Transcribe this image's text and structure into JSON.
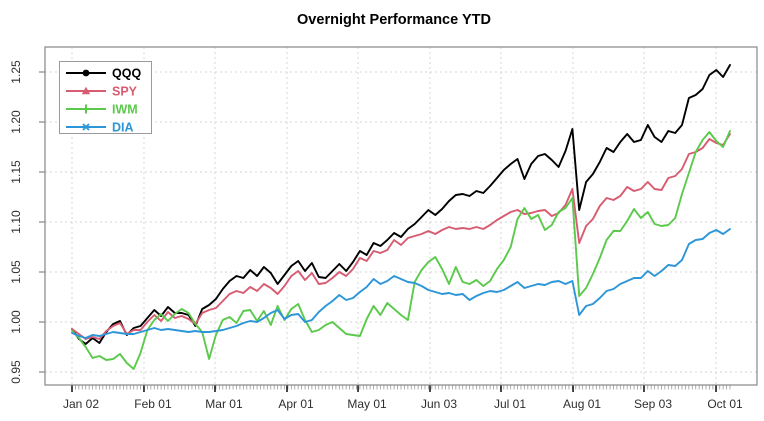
{
  "chart_data": {
    "type": "line",
    "title": "Overnight Performance YTD",
    "xlabel": "",
    "ylabel": "",
    "grid": true,
    "legend_position": "top-left",
    "x_tick_labels": [
      "Jan 02",
      "Feb 01",
      "Mar 01",
      "Apr 01",
      "May 01",
      "Jun 03",
      "Jul 01",
      "Aug 01",
      "Sep 03",
      "Oct 01"
    ],
    "x_tick_positions": [
      0,
      10.5,
      20.86,
      31.37,
      41.73,
      52.23,
      62.59,
      73.1,
      83.45,
      93.96
    ],
    "x_index_max": 96,
    "minor_tick_step": 0.5,
    "y_tick_labels": [
      "0.95",
      "1.00",
      "1.05",
      "1.10",
      "1.15",
      "1.20",
      "1.25"
    ],
    "y_tick_values": [
      0.95,
      1.0,
      1.05,
      1.1,
      1.15,
      1.2,
      1.25
    ],
    "y_domain": [
      0.937,
      1.275
    ],
    "colors": {
      "axis": "#878787",
      "grid": "#d6d6d6",
      "minor_tick": "#9a9a9a",
      "major_tick": "#1a1a1a",
      "label": "#2e2e2e",
      "legend_border": "#9a9a9a"
    },
    "series": [
      {
        "name": "QQQ",
        "color": "#000000",
        "marker": "circle",
        "values": [
          0.993,
          0.983,
          0.978,
          0.984,
          0.979,
          0.99,
          0.998,
          1.001,
          0.987,
          0.994,
          0.996,
          1.004,
          1.012,
          1.006,
          1.015,
          1.009,
          1.009,
          1.007,
          0.996,
          1.013,
          1.017,
          1.023,
          1.033,
          1.041,
          1.046,
          1.044,
          1.052,
          1.046,
          1.055,
          1.049,
          1.038,
          1.047,
          1.056,
          1.061,
          1.051,
          1.059,
          1.045,
          1.044,
          1.051,
          1.058,
          1.051,
          1.06,
          1.071,
          1.067,
          1.079,
          1.076,
          1.082,
          1.089,
          1.085,
          1.093,
          1.098,
          1.105,
          1.112,
          1.107,
          1.113,
          1.121,
          1.127,
          1.128,
          1.126,
          1.131,
          1.129,
          1.136,
          1.144,
          1.152,
          1.158,
          1.163,
          1.143,
          1.158,
          1.166,
          1.168,
          1.162,
          1.155,
          1.171,
          1.193,
          1.112,
          1.14,
          1.148,
          1.16,
          1.174,
          1.17,
          1.18,
          1.188,
          1.18,
          1.182,
          1.197,
          1.185,
          1.18,
          1.191,
          1.189,
          1.197,
          1.224,
          1.227,
          1.233,
          1.247,
          1.252,
          1.245,
          1.257
        ]
      },
      {
        "name": "SPY",
        "color": "#d85c71",
        "marker": "triangle",
        "values": [
          0.993,
          0.988,
          0.983,
          0.985,
          0.983,
          0.991,
          0.996,
          0.999,
          0.988,
          0.992,
          0.992,
          1.0,
          1.007,
          1.001,
          1.01,
          1.004,
          1.006,
          1.003,
          0.998,
          1.009,
          1.012,
          1.014,
          1.021,
          1.028,
          1.031,
          1.029,
          1.035,
          1.031,
          1.038,
          1.034,
          1.028,
          1.036,
          1.046,
          1.051,
          1.042,
          1.049,
          1.038,
          1.039,
          1.044,
          1.05,
          1.046,
          1.053,
          1.064,
          1.061,
          1.071,
          1.069,
          1.072,
          1.082,
          1.077,
          1.084,
          1.086,
          1.088,
          1.091,
          1.088,
          1.092,
          1.095,
          1.093,
          1.094,
          1.093,
          1.095,
          1.093,
          1.097,
          1.102,
          1.106,
          1.11,
          1.112,
          1.108,
          1.109,
          1.111,
          1.112,
          1.106,
          1.109,
          1.117,
          1.133,
          1.079,
          1.096,
          1.103,
          1.116,
          1.124,
          1.122,
          1.126,
          1.135,
          1.131,
          1.133,
          1.14,
          1.133,
          1.132,
          1.144,
          1.146,
          1.153,
          1.168,
          1.17,
          1.174,
          1.183,
          1.179,
          1.177,
          1.188
        ]
      },
      {
        "name": "IWM",
        "color": "#5bc94b",
        "marker": "plus",
        "values": [
          0.991,
          0.984,
          0.975,
          0.964,
          0.966,
          0.962,
          0.963,
          0.968,
          0.959,
          0.953,
          0.969,
          0.992,
          1.002,
          1.008,
          1.001,
          1.008,
          1.013,
          1.009,
          0.998,
          0.99,
          0.963,
          0.987,
          1.002,
          1.005,
          0.999,
          1.011,
          1.012,
          1.001,
          1.011,
          0.997,
          1.016,
          1.002,
          1.013,
          1.018,
          1.002,
          0.99,
          0.992,
          0.997,
          1.0,
          0.994,
          0.988,
          0.987,
          0.986,
          1.003,
          1.016,
          1.007,
          1.019,
          1.013,
          1.007,
          1.002,
          1.04,
          1.052,
          1.06,
          1.065,
          1.053,
          1.038,
          1.055,
          1.04,
          1.038,
          1.042,
          1.036,
          1.041,
          1.053,
          1.062,
          1.075,
          1.103,
          1.114,
          1.103,
          1.107,
          1.092,
          1.097,
          1.11,
          1.114,
          1.124,
          1.026,
          1.034,
          1.048,
          1.064,
          1.082,
          1.091,
          1.091,
          1.101,
          1.113,
          1.104,
          1.11,
          1.098,
          1.096,
          1.097,
          1.104,
          1.128,
          1.149,
          1.17,
          1.182,
          1.19,
          1.181,
          1.175,
          1.191
        ]
      },
      {
        "name": "DIA",
        "color": "#2d96d8",
        "marker": "asterisk",
        "values": [
          0.989,
          0.986,
          0.984,
          0.987,
          0.986,
          0.988,
          0.99,
          0.989,
          0.988,
          0.988,
          0.99,
          0.992,
          0.994,
          0.992,
          0.993,
          0.992,
          0.991,
          0.99,
          0.991,
          0.99,
          0.99,
          0.991,
          0.992,
          0.994,
          0.996,
          0.999,
          1.001,
          1.0,
          1.004,
          1.009,
          1.012,
          1.003,
          1.007,
          1.008,
          1.0,
          1.002,
          1.01,
          1.016,
          1.021,
          1.027,
          1.022,
          1.024,
          1.03,
          1.035,
          1.043,
          1.038,
          1.041,
          1.046,
          1.043,
          1.04,
          1.039,
          1.036,
          1.032,
          1.03,
          1.028,
          1.029,
          1.027,
          1.028,
          1.022,
          1.026,
          1.029,
          1.031,
          1.03,
          1.032,
          1.036,
          1.04,
          1.034,
          1.036,
          1.038,
          1.037,
          1.04,
          1.041,
          1.038,
          1.041,
          1.007,
          1.016,
          1.018,
          1.024,
          1.031,
          1.033,
          1.038,
          1.041,
          1.044,
          1.044,
          1.051,
          1.046,
          1.051,
          1.057,
          1.056,
          1.062,
          1.078,
          1.082,
          1.083,
          1.089,
          1.092,
          1.088,
          1.093
        ]
      }
    ]
  }
}
